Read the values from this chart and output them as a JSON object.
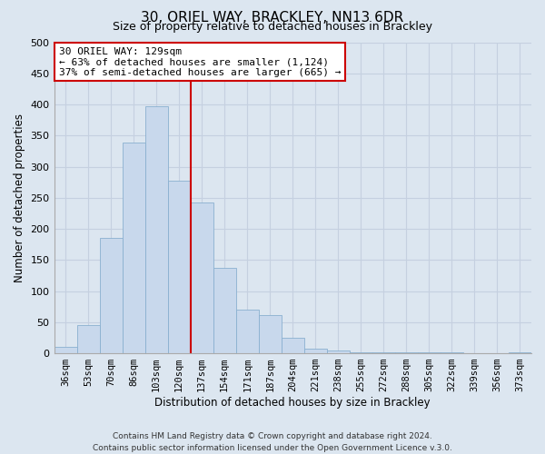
{
  "title": "30, ORIEL WAY, BRACKLEY, NN13 6DR",
  "subtitle": "Size of property relative to detached houses in Brackley",
  "xlabel": "Distribution of detached houses by size in Brackley",
  "ylabel": "Number of detached properties",
  "footer_line1": "Contains HM Land Registry data © Crown copyright and database right 2024.",
  "footer_line2": "Contains public sector information licensed under the Open Government Licence v.3.0.",
  "bar_labels": [
    "36sqm",
    "53sqm",
    "70sqm",
    "86sqm",
    "103sqm",
    "120sqm",
    "137sqm",
    "154sqm",
    "171sqm",
    "187sqm",
    "204sqm",
    "221sqm",
    "238sqm",
    "255sqm",
    "272sqm",
    "288sqm",
    "305sqm",
    "322sqm",
    "339sqm",
    "356sqm",
    "373sqm"
  ],
  "bar_values": [
    10,
    46,
    185,
    338,
    397,
    278,
    243,
    137,
    70,
    62,
    25,
    8,
    4,
    2,
    1,
    1,
    1,
    1,
    0,
    0,
    2
  ],
  "bar_color": "#c8d8ec",
  "bar_edge_color": "#8ab0d0",
  "vline_color": "#cc0000",
  "vline_x_idx": 5.5,
  "annotation_text": "30 ORIEL WAY: 129sqm\n← 63% of detached houses are smaller (1,124)\n37% of semi-detached houses are larger (665) →",
  "annotation_box_facecolor": "white",
  "annotation_box_edgecolor": "#cc0000",
  "ylim": [
    0,
    500
  ],
  "yticks": [
    0,
    50,
    100,
    150,
    200,
    250,
    300,
    350,
    400,
    450,
    500
  ],
  "grid_color": "#c5d0e0",
  "bg_color": "#dce6f0",
  "title_fontsize": 11,
  "subtitle_fontsize": 9,
  "tick_fontsize": 7.5,
  "ylabel_fontsize": 8.5,
  "xlabel_fontsize": 8.5,
  "footer_fontsize": 6.5,
  "annotation_fontsize": 8
}
